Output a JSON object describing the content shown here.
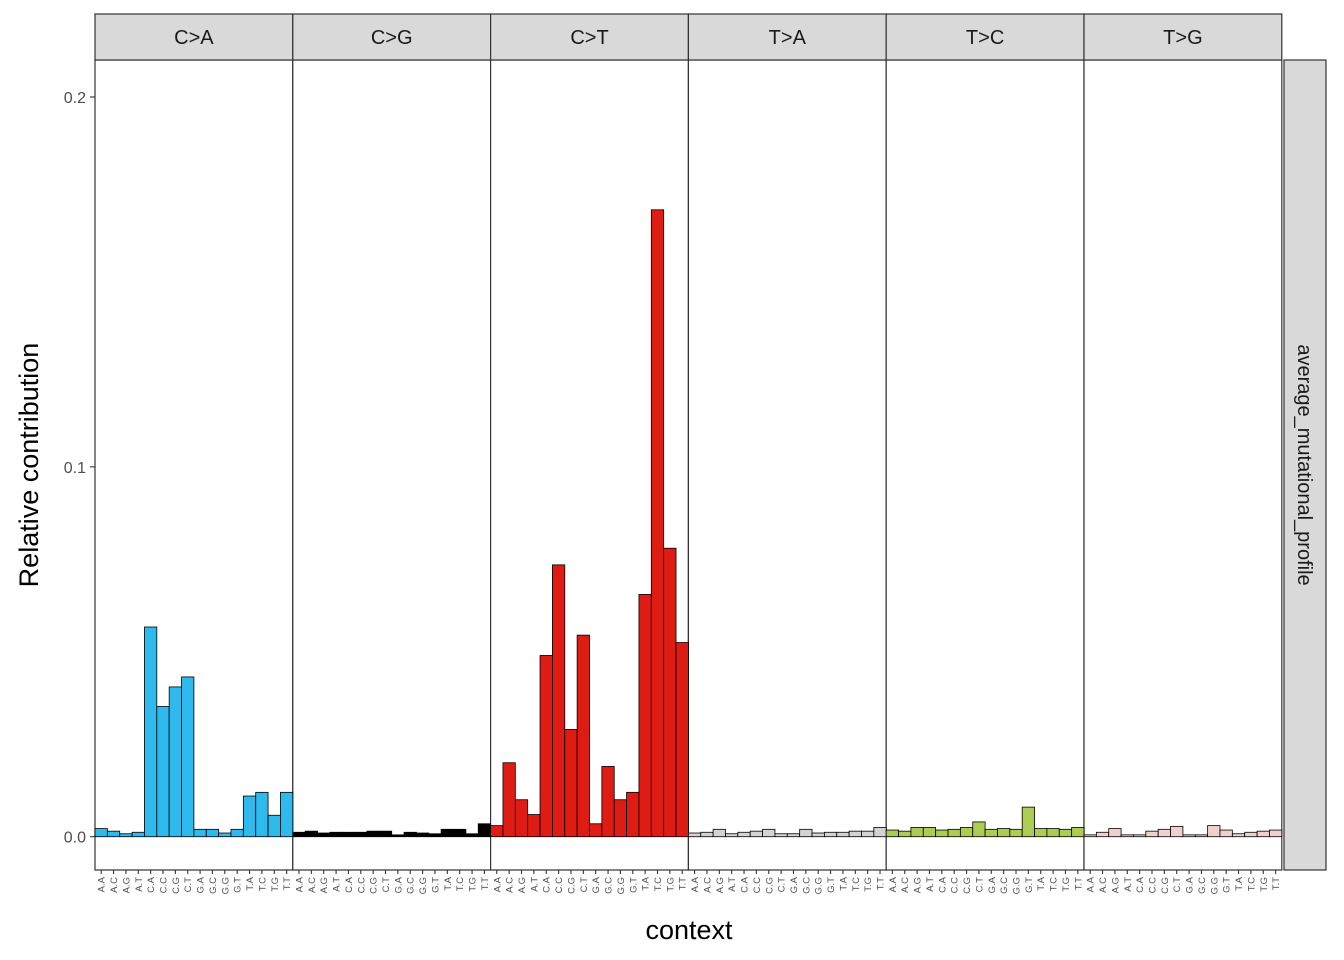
{
  "chart_data": {
    "type": "bar",
    "xlabel": "context",
    "ylabel": "Relative contribution",
    "ylim": [
      -0.009,
      0.21
    ],
    "yticks": [
      0.0,
      0.1,
      0.2
    ],
    "ytick_labels": [
      "0.0",
      "0.1",
      "0.2"
    ],
    "grid": true,
    "row_strip": "average_mutational_profile",
    "contexts": [
      "A.A",
      "A.C",
      "A.G",
      "A.T",
      "C.A",
      "C.C",
      "C.G",
      "C.T",
      "G.A",
      "G.C",
      "G.G",
      "G.T",
      "T.A",
      "T.C",
      "T.G",
      "T.T"
    ],
    "panels": [
      {
        "name": "C>A",
        "color": "#2EBAED",
        "values": [
          0.0022,
          0.0015,
          0.0008,
          0.0012,
          0.0567,
          0.0352,
          0.0405,
          0.0432,
          0.002,
          0.002,
          0.001,
          0.002,
          0.011,
          0.012,
          0.0058,
          0.012
        ]
      },
      {
        "name": "C>G",
        "color": "#000000",
        "values": [
          0.0012,
          0.0015,
          0.001,
          0.0012,
          0.0012,
          0.0012,
          0.0015,
          0.0015,
          0.0005,
          0.0012,
          0.001,
          0.0008,
          0.002,
          0.002,
          0.0008,
          0.0035
        ]
      },
      {
        "name": "C>T",
        "color": "#DE1C14",
        "values": [
          0.003,
          0.02,
          0.01,
          0.006,
          0.049,
          0.0735,
          0.029,
          0.0545,
          0.0035,
          0.019,
          0.01,
          0.012,
          0.0655,
          0.1695,
          0.078,
          0.0525
        ]
      },
      {
        "name": "T>A",
        "color": "#D4D2D2",
        "values": [
          0.001,
          0.0012,
          0.002,
          0.0008,
          0.0012,
          0.0015,
          0.002,
          0.0008,
          0.0008,
          0.002,
          0.001,
          0.0012,
          0.0012,
          0.0015,
          0.0015,
          0.0025
        ]
      },
      {
        "name": "T>C",
        "color": "#ADCC54",
        "values": [
          0.0018,
          0.0015,
          0.0025,
          0.0025,
          0.0018,
          0.002,
          0.0025,
          0.004,
          0.002,
          0.0022,
          0.002,
          0.008,
          0.0022,
          0.0022,
          0.002,
          0.0025
        ]
      },
      {
        "name": "T>G",
        "color": "#F0D0CE",
        "values": [
          0.0005,
          0.0012,
          0.0022,
          0.0005,
          0.0005,
          0.0015,
          0.002,
          0.0028,
          0.0005,
          0.0005,
          0.003,
          0.0018,
          0.0008,
          0.0012,
          0.0015,
          0.0018
        ]
      }
    ]
  }
}
